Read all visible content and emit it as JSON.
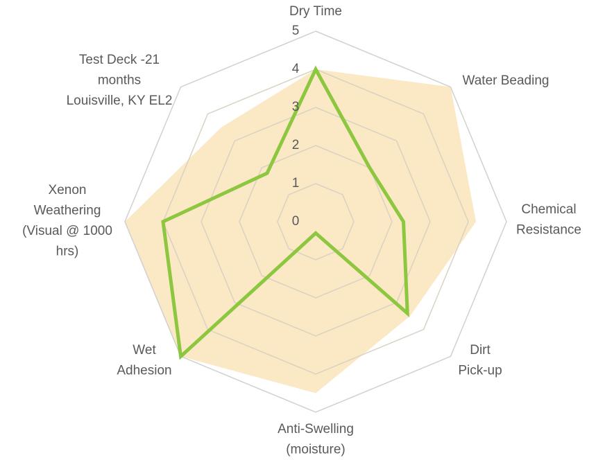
{
  "chart_data": {
    "type": "radar",
    "categories": [
      [
        "Dry Time"
      ],
      [
        "Water Beading"
      ],
      [
        "Chemical",
        "Resistance"
      ],
      [
        "Dirt",
        "Pick-up"
      ],
      [
        "Anti-Swelling",
        "(moisture)"
      ],
      [
        "Wet",
        "Adhesion"
      ],
      [
        "Xenon",
        "Weathering",
        "(Visual @ 1000",
        "hrs)"
      ],
      [
        "Test Deck -21",
        "months",
        "Louisville, KY EL2"
      ]
    ],
    "series": [
      {
        "style": "area",
        "color": "#fbe8c4",
        "values": [
          4,
          5,
          4.2,
          3.5,
          4.5,
          5,
          5,
          3.5
        ]
      },
      {
        "style": "line",
        "color": "#8dc63f",
        "values": [
          4,
          2,
          2.3,
          3.4,
          0.3,
          5,
          4,
          1.8
        ]
      }
    ],
    "rlim": [
      0,
      5
    ],
    "rticks": [
      0,
      1,
      2,
      3,
      4,
      5
    ],
    "grid": true
  }
}
